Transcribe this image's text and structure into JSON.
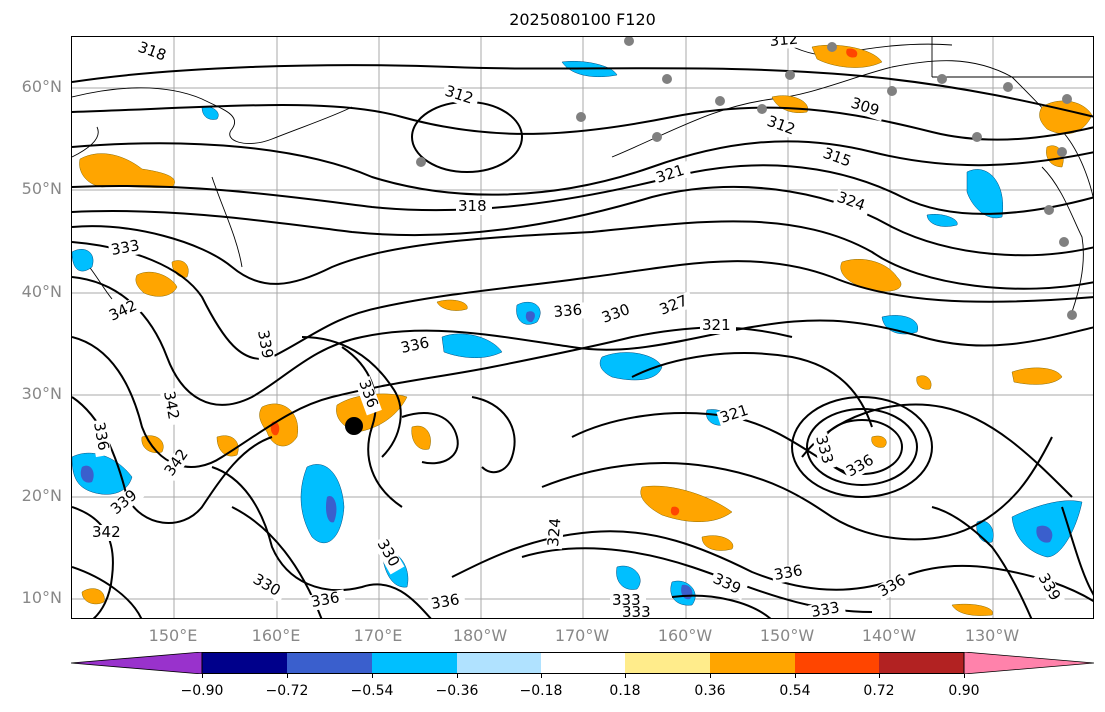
{
  "title": "2025080100 F120",
  "latitude_labels": [
    "60°N",
    "50°N",
    "40°N",
    "30°N",
    "20°N",
    "10°N"
  ],
  "longitude_labels": [
    "150°E",
    "160°E",
    "170°E",
    "180°W",
    "170°W",
    "160°W",
    "150°W",
    "140°W",
    "130°W"
  ],
  "colorbar": {
    "ticks": [
      "−0.90",
      "−0.72",
      "−0.54",
      "−0.36",
      "−0.18",
      "0.18",
      "0.36",
      "0.54",
      "0.72",
      "0.90"
    ],
    "colors": [
      "#9932cc",
      "#00008b",
      "#3a5fcd",
      "#00bfff",
      "#b0e2ff",
      "#ffffff",
      "#ffec8b",
      "#ffa500",
      "#ff4500",
      "#b22222",
      "#ff82ab"
    ]
  },
  "contour_labels": [
    "318",
    "312",
    "312",
    "309",
    "312",
    "315",
    "321",
    "318",
    "324",
    "333",
    "342",
    "339",
    "336",
    "336",
    "330",
    "327",
    "321",
    "342",
    "342",
    "336",
    "336",
    "321",
    "333",
    "336",
    "339",
    "342",
    "324",
    "330",
    "336",
    "336",
    "330",
    "333",
    "339",
    "336",
    "333",
    "336",
    "339",
    "333"
  ],
  "colors": {
    "contour": "#000000",
    "grid": "#a0a0a0",
    "station": "#808080",
    "marker": "#000000",
    "positive_shading": "#ffa500",
    "negative_shading": "#00bfff"
  }
}
